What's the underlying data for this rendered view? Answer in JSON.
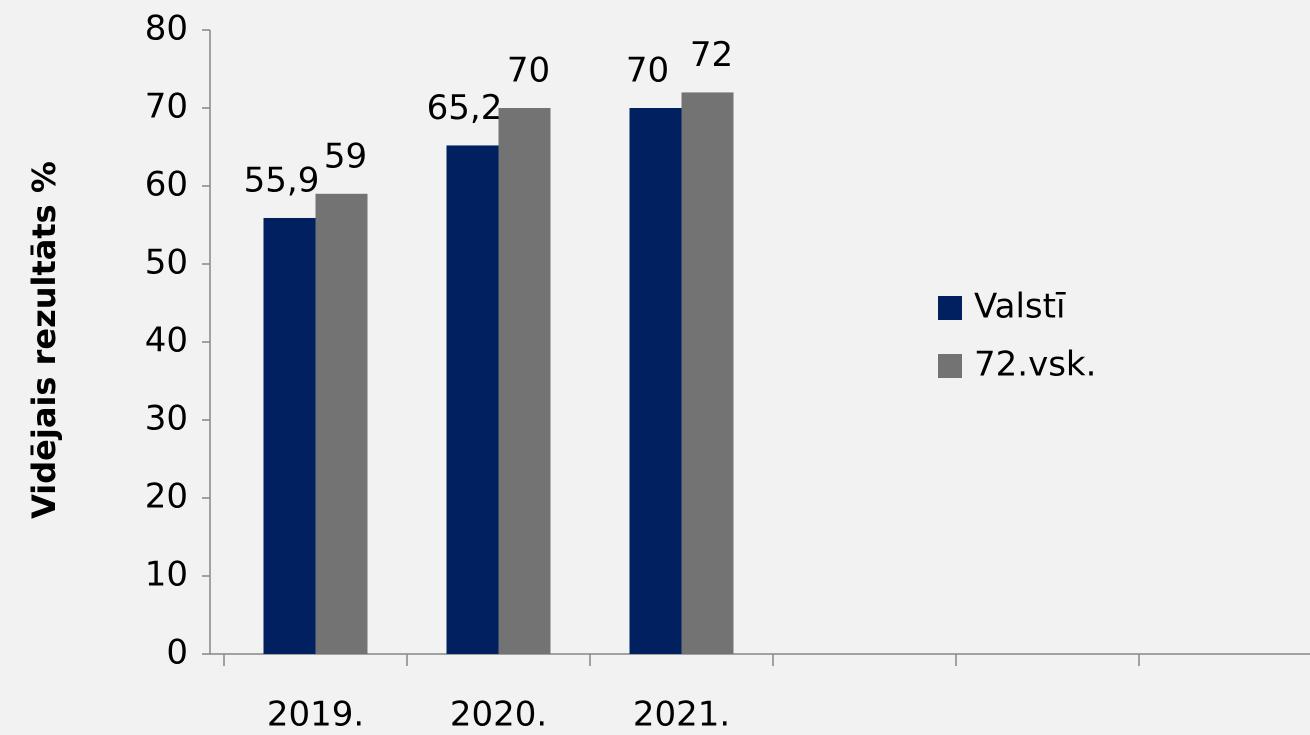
{
  "chart_data": {
    "type": "bar",
    "y_axis_label": "Vidējais rezultāts %",
    "categories": [
      "2019.",
      "2020.",
      "2021.",
      null,
      null,
      null
    ],
    "series": [
      {
        "name": "Valstī",
        "color": "#002060",
        "values": [
          55.9,
          65.2,
          70,
          null,
          null,
          null
        ],
        "value_labels": [
          "55,9",
          "65,2",
          "70",
          null,
          null,
          null
        ]
      },
      {
        "name": "72.vsk.",
        "color": "#737373",
        "values": [
          59,
          70,
          72,
          null,
          null,
          null
        ]
      }
    ],
    "ylim": [
      0,
      80
    ],
    "yticks": [
      0,
      10,
      20,
      30,
      40,
      50,
      60,
      70,
      80
    ],
    "legend": "right"
  }
}
